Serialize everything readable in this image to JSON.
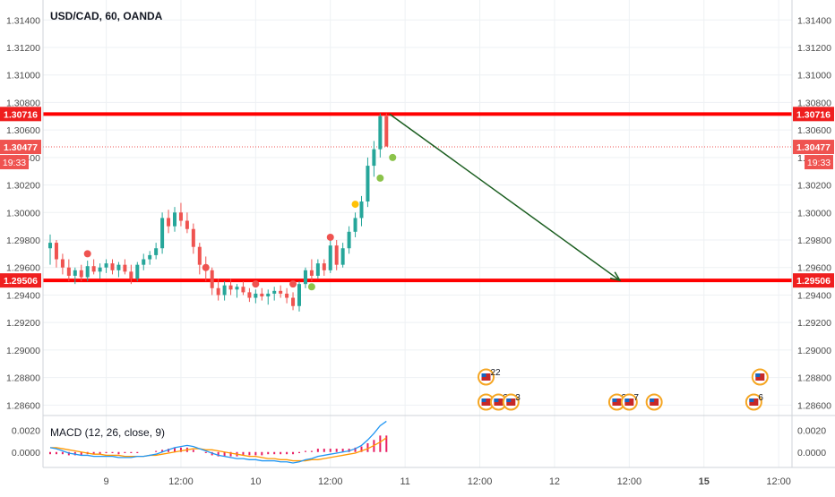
{
  "chart_data": {
    "type": "candlestick",
    "title": "USD/CAD, 60, OANDA",
    "colors": {
      "up": "#26a69a",
      "down": "#ef5350",
      "level_line": "#ff0000",
      "arrow": "#1b5e20",
      "macd_line": "#2196f3",
      "signal_line": "#ff9800",
      "histogram": "#e91e63",
      "grid": "#eef1f4"
    },
    "x_labels": [
      "9",
      "12:00",
      "10",
      "12:00",
      "11",
      "12:00",
      "12",
      "12:00",
      "15",
      "12:00"
    ],
    "y_ticks": [
      "1.31400",
      "1.31200",
      "1.31000",
      "1.30800",
      "1.30600",
      "1.30400",
      "1.30200",
      "1.30000",
      "1.29800",
      "1.29600",
      "1.29400",
      "1.29200",
      "1.29000",
      "1.28800",
      "1.28600"
    ],
    "ylim": [
      1.2855,
      1.3148
    ],
    "candles": [
      [
        1.2974,
        1.2984,
        1.2962,
        1.2978
      ],
      [
        1.2978,
        1.298,
        1.296,
        1.2966
      ],
      [
        1.2966,
        1.297,
        1.2955,
        1.296
      ],
      [
        1.296,
        1.2966,
        1.295,
        1.2954
      ],
      [
        1.2954,
        1.296,
        1.2948,
        1.2958
      ],
      [
        1.2958,
        1.2962,
        1.295,
        1.2953
      ],
      [
        1.2953,
        1.2965,
        1.295,
        1.2961
      ],
      [
        1.2961,
        1.2966,
        1.2955,
        1.2957
      ],
      [
        1.2957,
        1.2963,
        1.2952,
        1.296
      ],
      [
        1.296,
        1.2966,
        1.2956,
        1.2963
      ],
      [
        1.2963,
        1.2966,
        1.2955,
        1.2958
      ],
      [
        1.2958,
        1.2964,
        1.2953,
        1.2962
      ],
      [
        1.2962,
        1.2966,
        1.2955,
        1.2957
      ],
      [
        1.2957,
        1.2962,
        1.2948,
        1.2952
      ],
      [
        1.2952,
        1.2964,
        1.295,
        1.2962
      ],
      [
        1.2962,
        1.297,
        1.2958,
        1.2966
      ],
      [
        1.2966,
        1.2972,
        1.2962,
        1.2969
      ],
      [
        1.2969,
        1.2978,
        1.2966,
        1.2974
      ],
      [
        1.2974,
        1.3,
        1.297,
        1.2996
      ],
      [
        1.2996,
        1.3002,
        1.2985,
        1.299
      ],
      [
        1.299,
        1.3004,
        1.2986,
        1.3
      ],
      [
        1.3,
        1.3007,
        1.299,
        1.2994
      ],
      [
        1.2994,
        1.3,
        1.2985,
        1.2988
      ],
      [
        1.2988,
        1.2992,
        1.297,
        1.2975
      ],
      [
        1.2975,
        1.2978,
        1.2955,
        1.2962
      ],
      [
        1.2962,
        1.2968,
        1.295,
        1.2958
      ],
      [
        1.2958,
        1.296,
        1.294,
        1.2945
      ],
      [
        1.2945,
        1.2952,
        1.2936,
        1.294
      ],
      [
        1.294,
        1.295,
        1.2936,
        1.2947
      ],
      [
        1.2947,
        1.2952,
        1.294,
        1.2944
      ],
      [
        1.2944,
        1.2948,
        1.2938,
        1.2946
      ],
      [
        1.2946,
        1.295,
        1.294,
        1.2942
      ],
      [
        1.2942,
        1.2945,
        1.2935,
        1.2938
      ],
      [
        1.2938,
        1.2944,
        1.2934,
        1.2941
      ],
      [
        1.2941,
        1.2945,
        1.2936,
        1.2939
      ],
      [
        1.2939,
        1.2944,
        1.2933,
        1.2941
      ],
      [
        1.2941,
        1.2946,
        1.2936,
        1.2943
      ],
      [
        1.2943,
        1.2947,
        1.2938,
        1.2941
      ],
      [
        1.2941,
        1.2945,
        1.2934,
        1.2938
      ],
      [
        1.2938,
        1.2942,
        1.2929,
        1.2932
      ],
      [
        1.2932,
        1.295,
        1.2928,
        1.2948
      ],
      [
        1.2948,
        1.296,
        1.2945,
        1.2958
      ],
      [
        1.2958,
        1.2966,
        1.295,
        1.2954
      ],
      [
        1.2954,
        1.2966,
        1.2952,
        1.2963
      ],
      [
        1.2963,
        1.2966,
        1.2954,
        1.2958
      ],
      [
        1.2958,
        1.298,
        1.2956,
        1.2976
      ],
      [
        1.2976,
        1.298,
        1.2958,
        1.2962
      ],
      [
        1.2962,
        1.2978,
        1.296,
        1.2974
      ],
      [
        1.2974,
        1.299,
        1.297,
        1.2986
      ],
      [
        1.2986,
        1.3,
        1.2982,
        1.2996
      ],
      [
        1.2996,
        1.3012,
        1.299,
        1.3008
      ],
      [
        1.3008,
        1.304,
        1.3004,
        1.3034
      ],
      [
        1.3034,
        1.3052,
        1.3026,
        1.3046
      ],
      [
        1.3046,
        1.3072,
        1.304,
        1.307
      ],
      [
        1.307,
        1.3072,
        1.3048,
        1.3048
      ]
    ],
    "levels": [
      {
        "price": 1.30716,
        "label": "1.30716"
      },
      {
        "price": 1.29506,
        "label": "1.29506"
      }
    ],
    "current_price": {
      "price": 1.30477,
      "label": "1.30477",
      "countdown": "19:33"
    },
    "projection_arrow": {
      "from": {
        "bar": 54.5,
        "price": 1.30716
      },
      "to": {
        "bar": 91.5,
        "price": 1.29506
      }
    },
    "signal_dots": [
      {
        "bar": 6,
        "price": 1.297,
        "color": "#ef5350"
      },
      {
        "bar": 25,
        "price": 1.296,
        "color": "#ef5350"
      },
      {
        "bar": 33,
        "price": 1.2948,
        "color": "#ef5350"
      },
      {
        "bar": 39,
        "price": 1.2948,
        "color": "#ef5350"
      },
      {
        "bar": 42,
        "price": 1.2946,
        "color": "#8bc34a"
      },
      {
        "bar": 45,
        "price": 1.2982,
        "color": "#ef5350"
      },
      {
        "bar": 49,
        "price": 1.3006,
        "color": "#ffc107"
      },
      {
        "bar": 53,
        "price": 1.3025,
        "color": "#8bc34a"
      },
      {
        "bar": 55,
        "price": 1.304,
        "color": "#8bc34a"
      }
    ],
    "event_markers": [
      {
        "bar": 70,
        "row": 0,
        "label": "22"
      },
      {
        "bar": 70,
        "row": 1,
        "label": ""
      },
      {
        "bar": 72,
        "row": 1,
        "label": "2"
      },
      {
        "bar": 74,
        "row": 1,
        "label": "3"
      },
      {
        "bar": 91,
        "row": 1,
        "label": "26"
      },
      {
        "bar": 93,
        "row": 1,
        "label": "7"
      },
      {
        "bar": 97,
        "row": 1,
        "label": ""
      },
      {
        "bar": 114,
        "row": 0,
        "label": ""
      },
      {
        "bar": 113,
        "row": 1,
        "label": "6"
      }
    ],
    "macd": {
      "label": "MACD (12, 26, close, 9)",
      "y_ticks": [
        "0.0020",
        "0.0000"
      ],
      "ylim": [
        -0.001,
        0.003
      ],
      "macd_line": [
        0.0004,
        0.0003,
        0.0001,
        -0.0001,
        -0.0002,
        -0.0003,
        -0.0003,
        -0.0004,
        -0.0004,
        -0.0004,
        -0.0004,
        -0.0005,
        -0.0005,
        -0.0005,
        -0.0004,
        -0.0004,
        -0.0003,
        -0.0002,
        0.0,
        0.0002,
        0.0004,
        0.0005,
        0.0006,
        0.0005,
        0.0003,
        0.0001,
        -0.0001,
        -0.0003,
        -0.0004,
        -0.0005,
        -0.0006,
        -0.0006,
        -0.0007,
        -0.0007,
        -0.0008,
        -0.0008,
        -0.0008,
        -0.0009,
        -0.0009,
        -0.001,
        -0.0009,
        -0.0007,
        -0.0006,
        -0.0004,
        -0.0003,
        -0.0002,
        -0.0001,
        0.0,
        0.0001,
        0.0003,
        0.0006,
        0.0011,
        0.0017,
        0.0024,
        0.0028
      ],
      "signal_line": [
        0.0004,
        0.0004,
        0.0003,
        0.0002,
        0.0001,
        0.0,
        -0.0001,
        -0.0002,
        -0.0002,
        -0.0003,
        -0.0003,
        -0.0003,
        -0.0004,
        -0.0004,
        -0.0004,
        -0.0004,
        -0.0003,
        -0.0003,
        -0.0002,
        -0.0001,
        0.0,
        0.0001,
        0.0002,
        0.0003,
        0.0003,
        0.0002,
        0.0002,
        0.0001,
        0.0,
        -0.0001,
        -0.0002,
        -0.0003,
        -0.0004,
        -0.0004,
        -0.0005,
        -0.0006,
        -0.0006,
        -0.0007,
        -0.0007,
        -0.0008,
        -0.0008,
        -0.0008,
        -0.0007,
        -0.0007,
        -0.0006,
        -0.0005,
        -0.0004,
        -0.0003,
        -0.0002,
        -0.0001,
        0.0001,
        0.0003,
        0.0006,
        0.0009,
        0.0013
      ],
      "histogram": [
        -0.0002,
        -0.0002,
        -0.0002,
        -0.0003,
        -0.0003,
        -0.0003,
        -0.0002,
        -0.0002,
        -0.0002,
        -0.0001,
        -0.0001,
        -0.0002,
        -0.0001,
        -0.0001,
        -0.0001,
        0.0,
        0.0,
        0.0001,
        0.0002,
        0.0003,
        0.0004,
        0.0004,
        0.0004,
        0.0002,
        0.0,
        -0.0001,
        -0.0003,
        -0.0004,
        -0.0004,
        -0.0004,
        -0.0004,
        -0.0003,
        -0.0003,
        -0.0003,
        -0.0003,
        -0.0002,
        -0.0002,
        -0.0002,
        -0.0002,
        -0.0002,
        -0.0001,
        0.0001,
        0.0001,
        0.0003,
        0.0003,
        0.0003,
        0.0003,
        0.0003,
        0.0003,
        0.0004,
        0.0005,
        0.0008,
        0.0011,
        0.0015,
        0.0015
      ]
    }
  }
}
